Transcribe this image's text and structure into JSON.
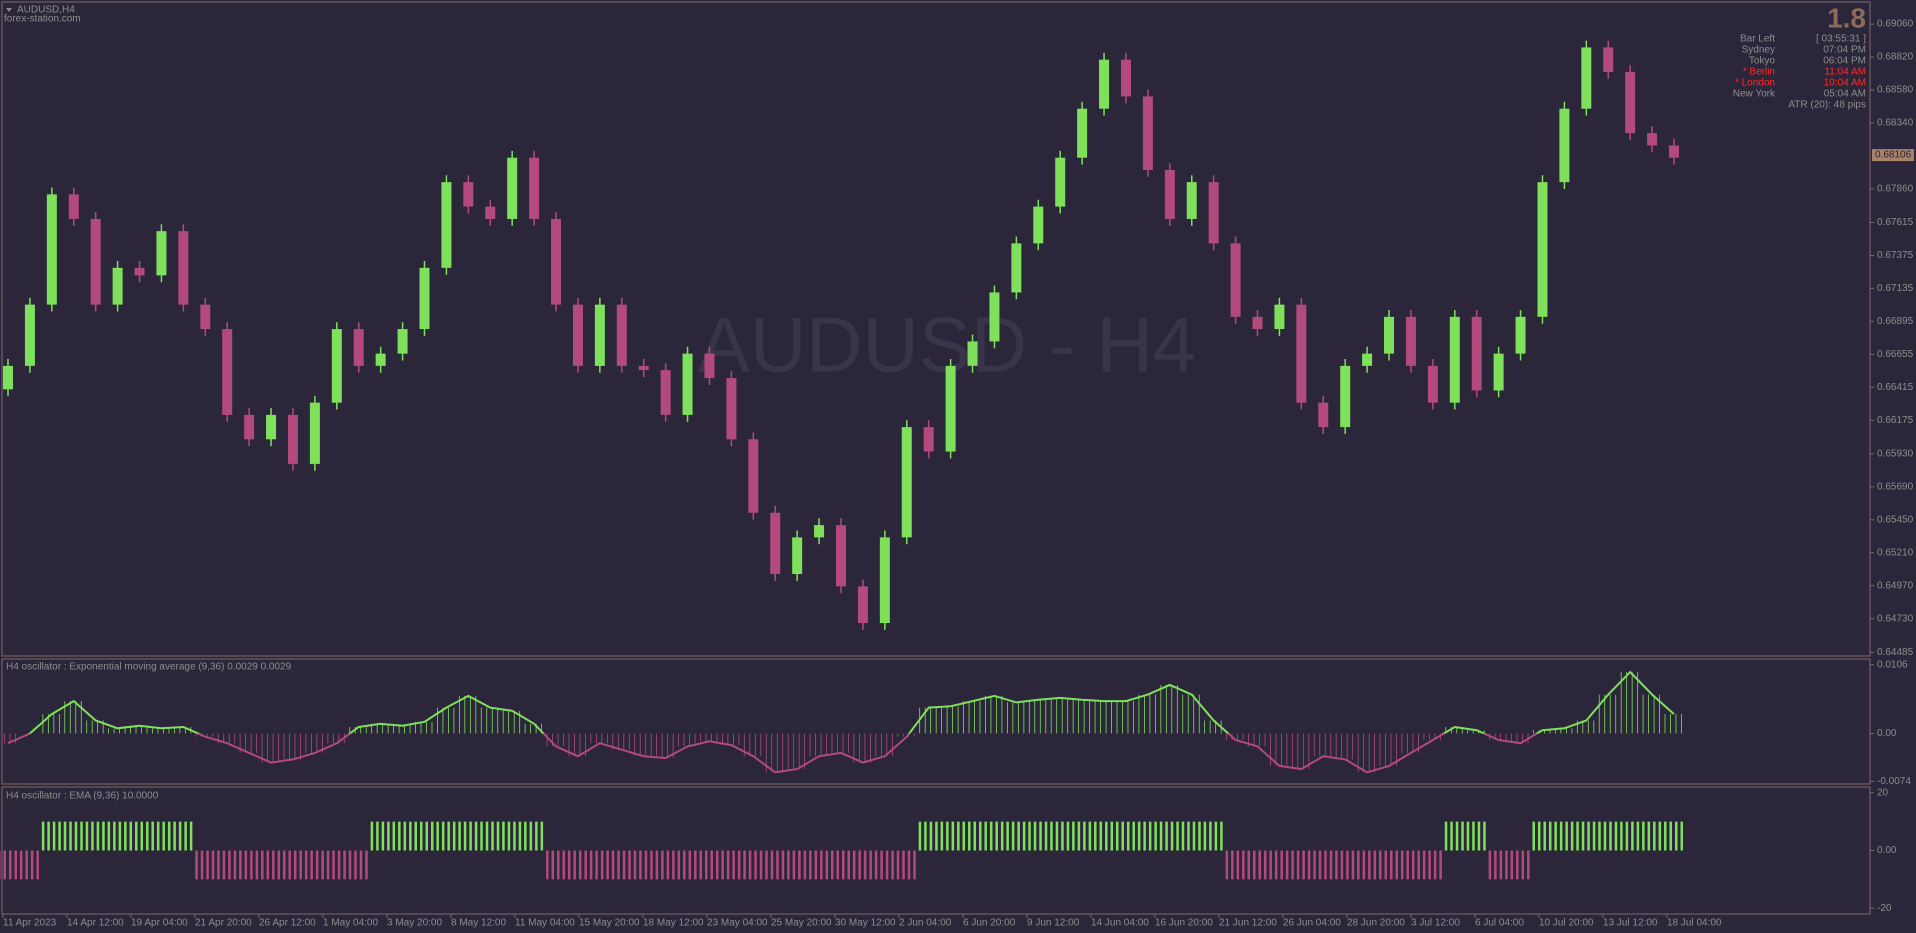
{
  "chart_data": [
    {
      "type": "candlestick",
      "title": "AUDUSD,H4",
      "subtitle": "forex-station.com",
      "watermark": "AUDUSD - H4",
      "up_color": "#7fe05c",
      "down_color": "#b24a7c",
      "open": [
        0.664,
        0.66571,
        0.67017,
        0.6782,
        0.67641,
        0.67017,
        0.67285,
        0.6723,
        0.67552,
        0.67017,
        0.66839,
        0.66214,
        0.66036,
        0.66214,
        0.65857,
        0.66303,
        0.66839,
        0.66571,
        0.6666,
        0.66839,
        0.67285,
        0.67909,
        0.67731,
        0.67641,
        0.68087,
        0.67641,
        0.67017,
        0.66571,
        0.67017,
        0.66571,
        0.6654,
        0.66214,
        0.6666,
        0.66482,
        0.66036,
        0.65501,
        0.65055,
        0.65322,
        0.65411,
        0.64965,
        0.64698,
        0.65322,
        0.66125,
        0.65947,
        0.66571,
        0.66749,
        0.67106,
        0.67463,
        0.67731,
        0.68087,
        0.68444,
        0.68801,
        0.68533,
        0.67998,
        0.67641,
        0.67909,
        0.67463,
        0.66928,
        0.66839,
        0.67017,
        0.66303,
        0.66125,
        0.66571,
        0.6666,
        0.66928,
        0.66571,
        0.66303,
        0.66928,
        0.66392,
        0.6666,
        0.66928,
        0.67909,
        0.68444,
        0.6889,
        0.68712,
        0.68266,
        0.68176
      ],
      "high": [
        0.66621,
        0.67067,
        0.6787,
        0.6787,
        0.67691,
        0.67335,
        0.67335,
        0.67602,
        0.67602,
        0.67067,
        0.66889,
        0.66264,
        0.66264,
        0.66264,
        0.66353,
        0.66889,
        0.66889,
        0.6671,
        0.66889,
        0.67335,
        0.67959,
        0.67959,
        0.67781,
        0.68137,
        0.68137,
        0.67691,
        0.67067,
        0.67067,
        0.67067,
        0.66621,
        0.6659,
        0.6671,
        0.6671,
        0.66532,
        0.66086,
        0.65551,
        0.65372,
        0.65461,
        0.65461,
        0.65015,
        0.65372,
        0.66175,
        0.66175,
        0.66621,
        0.66799,
        0.67156,
        0.67513,
        0.67781,
        0.68137,
        0.68494,
        0.68851,
        0.68851,
        0.68583,
        0.68048,
        0.67959,
        0.67959,
        0.67513,
        0.66978,
        0.67067,
        0.67067,
        0.66353,
        0.66621,
        0.6671,
        0.66978,
        0.66978,
        0.66621,
        0.66978,
        0.66978,
        0.6671,
        0.66978,
        0.67959,
        0.68494,
        0.6894,
        0.6894,
        0.68762,
        0.68316,
        0.68226
      ],
      "low": [
        0.6635,
        0.66521,
        0.66967,
        0.67591,
        0.66967,
        0.66967,
        0.6718,
        0.6718,
        0.66967,
        0.66789,
        0.66164,
        0.65986,
        0.65986,
        0.65807,
        0.65807,
        0.66253,
        0.66521,
        0.66521,
        0.6661,
        0.66789,
        0.67235,
        0.67681,
        0.67591,
        0.67591,
        0.67591,
        0.66967,
        0.66521,
        0.66521,
        0.66521,
        0.6649,
        0.66164,
        0.66164,
        0.66432,
        0.65986,
        0.65451,
        0.65005,
        0.65005,
        0.65272,
        0.64915,
        0.64648,
        0.64648,
        0.65272,
        0.65897,
        0.65897,
        0.66521,
        0.66699,
        0.67056,
        0.67413,
        0.67681,
        0.68037,
        0.68394,
        0.68483,
        0.67948,
        0.67591,
        0.67591,
        0.67413,
        0.66878,
        0.66789,
        0.66789,
        0.66253,
        0.66075,
        0.66075,
        0.66521,
        0.6661,
        0.66521,
        0.66253,
        0.66253,
        0.66342,
        0.66342,
        0.6661,
        0.66878,
        0.67859,
        0.68394,
        0.68662,
        0.68216,
        0.68126,
        0.68037
      ],
      "close": [
        0.66571,
        0.67017,
        0.6782,
        0.67641,
        0.67017,
        0.67285,
        0.6723,
        0.67552,
        0.67017,
        0.66839,
        0.66214,
        0.66036,
        0.66214,
        0.65857,
        0.66303,
        0.66839,
        0.66571,
        0.6666,
        0.66839,
        0.67285,
        0.67909,
        0.67731,
        0.67641,
        0.68087,
        0.67641,
        0.67017,
        0.66571,
        0.67017,
        0.66571,
        0.6654,
        0.66214,
        0.6666,
        0.66482,
        0.66036,
        0.65501,
        0.65055,
        0.65322,
        0.65411,
        0.64965,
        0.64698,
        0.65322,
        0.66125,
        0.65947,
        0.66571,
        0.66749,
        0.67106,
        0.67463,
        0.67731,
        0.68087,
        0.68444,
        0.68801,
        0.68533,
        0.67998,
        0.67641,
        0.67909,
        0.67463,
        0.66928,
        0.66839,
        0.67017,
        0.66303,
        0.66125,
        0.66571,
        0.6666,
        0.66928,
        0.66571,
        0.66303,
        0.66928,
        0.66392,
        0.6666,
        0.66928,
        0.67909,
        0.68444,
        0.6889,
        0.68712,
        0.68266,
        0.68176,
        0.68087
      ],
      "ylim": [
        0.64458,
        0.69221
      ],
      "yticks": [
        {
          "value": 0.6906,
          "label": "0.69060"
        },
        {
          "value": 0.6882,
          "label": "0.68820"
        },
        {
          "value": 0.6858,
          "label": "0.68580"
        },
        {
          "value": 0.6834,
          "label": "0.68340"
        },
        {
          "value": 0.6786,
          "label": "0.67860"
        },
        {
          "value": 0.67615,
          "label": "0.67615"
        },
        {
          "value": 0.67375,
          "label": "0.67375"
        },
        {
          "value": 0.67135,
          "label": "0.67135"
        },
        {
          "value": 0.66895,
          "label": "0.66895"
        },
        {
          "value": 0.66655,
          "label": "0.66655"
        },
        {
          "value": 0.66415,
          "label": "0.66415"
        },
        {
          "value": 0.66175,
          "label": "0.66175"
        },
        {
          "value": 0.6593,
          "label": "0.65930"
        },
        {
          "value": 0.6569,
          "label": "0.65690"
        },
        {
          "value": 0.6545,
          "label": "0.65450"
        },
        {
          "value": 0.6521,
          "label": "0.65210"
        },
        {
          "value": 0.6497,
          "label": "0.64970"
        },
        {
          "value": 0.6473,
          "label": "0.64730"
        },
        {
          "value": 0.64485,
          "label": "0.64485"
        }
      ],
      "current_price": 0.68106,
      "x_axis_labels": [
        "11 Apr 2023",
        "14 Apr 12:00",
        "19 Apr 04:00",
        "21 Apr 20:00",
        "26 Apr 12:00",
        "1 May 04:00",
        "3 May 20:00",
        "8 May 12:00",
        "11 May 04:00",
        "15 May 20:00",
        "18 May 12:00",
        "23 May 04:00",
        "25 May 20:00",
        "30 May 12:00",
        "2 Jun 04:00",
        "6 Jun 20:00",
        "9 Jun 12:00",
        "14 Jun 04:00",
        "16 Jun 20:00",
        "21 Jun 12:00",
        "26 Jun 04:00",
        "28 Jun 20:00",
        "3 Jul 12:00",
        "6 Jul 04:00",
        "10 Jul 20:00",
        "13 Jul 12:00",
        "18 Jul 04:00"
      ],
      "info_panel": {
        "spread": "1.8",
        "bar_left": "Bar Left",
        "bar_left_time": "[ 03:55:31 ]",
        "rows": [
          [
            "Sydney",
            "07:04 PM"
          ],
          [
            "Tokyo",
            "06:04 PM"
          ],
          [
            "* Berlin",
            "11:04 AM"
          ],
          [
            "* London",
            "10:04 AM"
          ],
          [
            "New York",
            "05:04 AM"
          ]
        ],
        "highlight_color": "#ff2a2a",
        "atr": "ATR (20): 48 pips"
      }
    },
    {
      "type": "line",
      "title": "H4  oscillator : Exponential moving average (9,36)  0.0029 0.0029",
      "positive_color": "#7fe05c",
      "negative_color": "#b24a7c",
      "values": [
        -0.0015,
        0,
        0.003,
        0.005,
        0.002,
        0.0008,
        0.0012,
        0.0008,
        0.001,
        -0.0005,
        -0.0015,
        -0.003,
        -0.0045,
        -0.004,
        -0.003,
        -0.0015,
        0.001,
        0.0015,
        0.0012,
        0.0018,
        0.004,
        0.0058,
        0.004,
        0.0035,
        0.0015,
        -0.002,
        -0.0035,
        -0.0015,
        -0.0025,
        -0.0035,
        -0.0038,
        -0.002,
        -0.0012,
        -0.0018,
        -0.0035,
        -0.006,
        -0.0055,
        -0.0035,
        -0.003,
        -0.0045,
        -0.0035,
        -0.0005,
        0.004,
        0.0042,
        0.005,
        0.0058,
        0.0048,
        0.0052,
        0.0055,
        0.0052,
        0.005,
        0.005,
        0.006,
        0.0075,
        0.006,
        0.002,
        -0.001,
        -0.002,
        -0.005,
        -0.0055,
        -0.0035,
        -0.004,
        -0.006,
        -0.005,
        -0.003,
        -0.001,
        0.001,
        0.0005,
        -0.001,
        -0.0015,
        0.0005,
        0.0008,
        0.002,
        0.006,
        0.0095,
        0.006,
        0.003
      ],
      "ylim": [
        -0.0078,
        0.0115
      ],
      "yticks": [
        0.0106,
        {
          "value": 0,
          "label": "0.00"
        },
        -0.0074
      ]
    },
    {
      "type": "bar",
      "title": "H4  oscillator : EMA (9,36)  10.0000",
      "positive_color": "#7fe05c",
      "negative_color": "#b24a7c",
      "values": [
        -10,
        -10,
        10,
        10,
        10,
        10,
        10,
        10,
        10,
        -10,
        -10,
        -10,
        -10,
        -10,
        -10,
        -10,
        -10,
        10,
        10,
        10,
        10,
        10,
        10,
        10,
        10,
        -10,
        -10,
        -10,
        -10,
        -10,
        -10,
        -10,
        -10,
        -10,
        -10,
        -10,
        -10,
        -10,
        -10,
        -10,
        -10,
        -10,
        10,
        10,
        10,
        10,
        10,
        10,
        10,
        10,
        10,
        10,
        10,
        10,
        10,
        10,
        -10,
        -10,
        -10,
        -10,
        -10,
        -10,
        -10,
        -10,
        -10,
        -10,
        10,
        10,
        -10,
        -10,
        10,
        10,
        10,
        10,
        10,
        10,
        10
      ],
      "ylim": [
        -22,
        22
      ],
      "yticks": [
        20,
        {
          "value": 0,
          "label": "0.00"
        },
        -20
      ]
    }
  ]
}
